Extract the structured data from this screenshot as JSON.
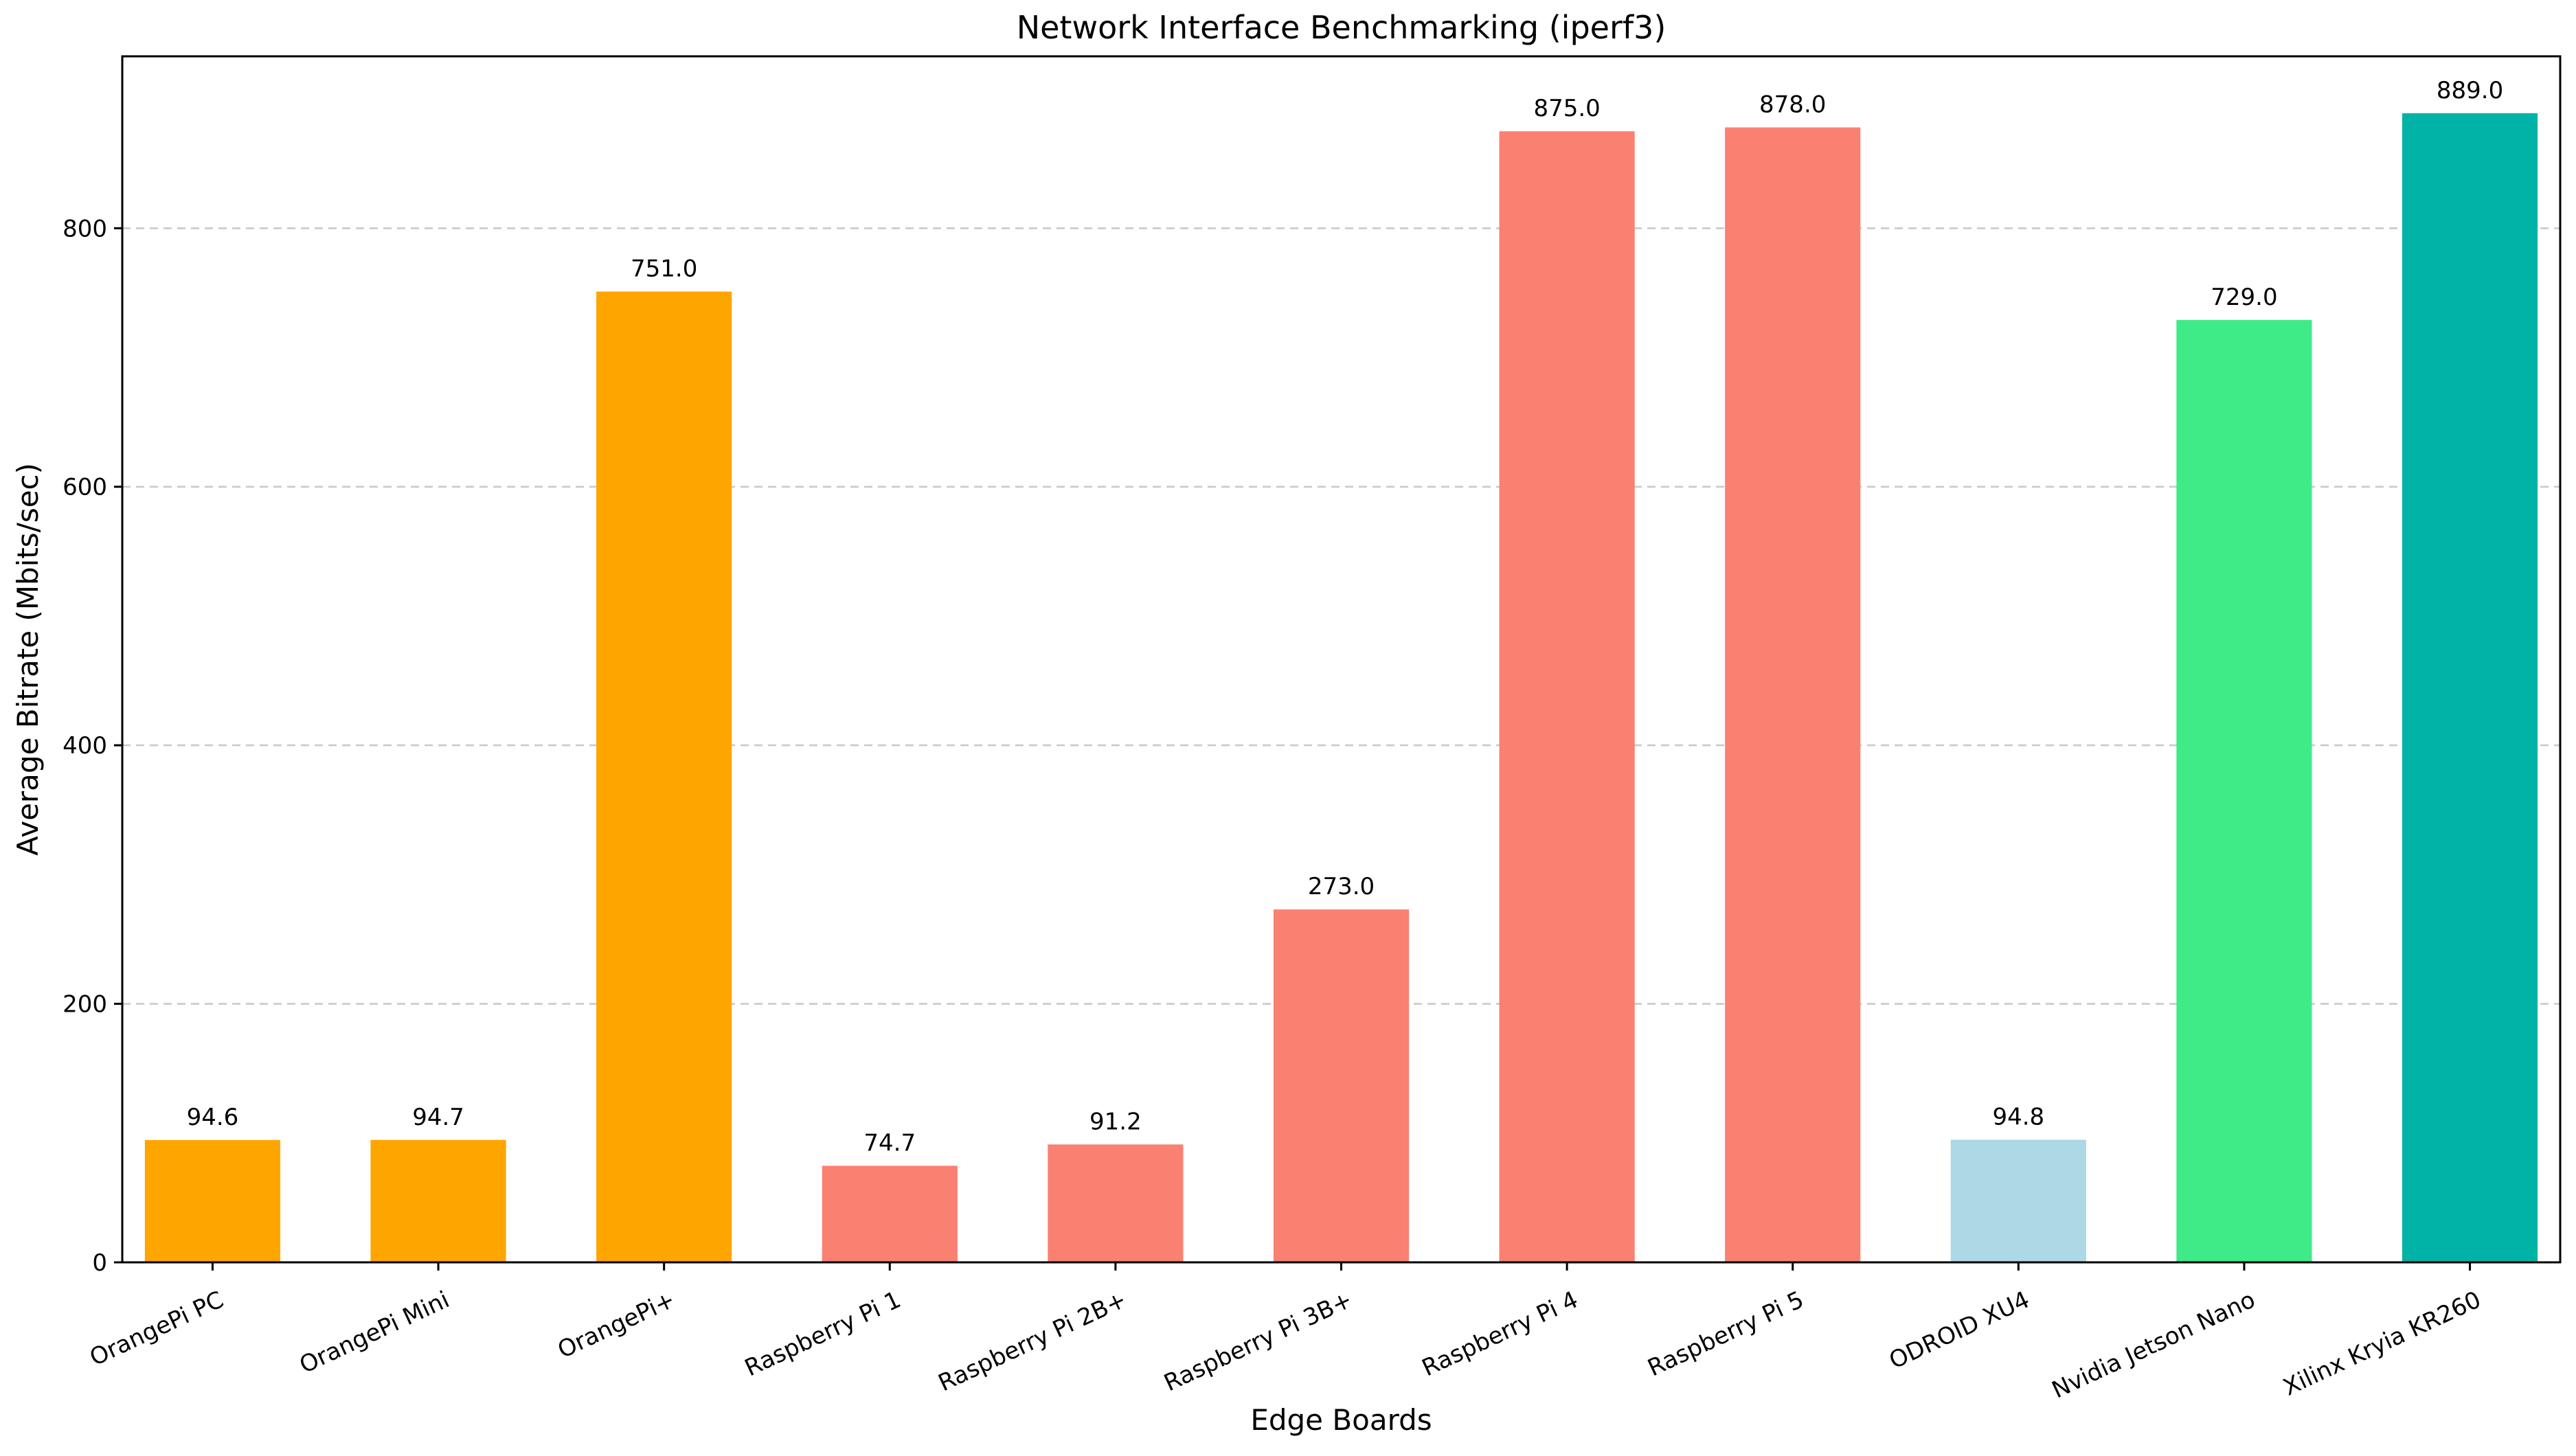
{
  "chart_data": {
    "type": "bar",
    "title": "Network Interface Benchmarking (iperf3)",
    "xlabel": "Edge Boards",
    "ylabel": "Average Bitrate (Mbits/sec)",
    "categories": [
      "OrangePi PC",
      "OrangePi Mini",
      "OrangePi+",
      "Raspberry Pi 1",
      "Raspberry Pi 2B+",
      "Raspberry Pi 3B+",
      "Raspberry Pi 4",
      "Raspberry Pi 5",
      "ODROID XU4",
      "Nvidia Jetson Nano",
      "Xilinx Kryia KR260"
    ],
    "values": [
      94.6,
      94.7,
      751.0,
      74.7,
      91.2,
      273.0,
      875.0,
      878.0,
      94.8,
      729.0,
      889.0
    ],
    "value_labels": [
      "94.6",
      "94.7",
      "751.0",
      "74.7",
      "91.2",
      "273.0",
      "875.0",
      "878.0",
      "94.8",
      "729.0",
      "889.0"
    ],
    "bar_colors": [
      "#FFA500",
      "#FFA500",
      "#FFA500",
      "#FA8072",
      "#FA8072",
      "#FA8072",
      "#FA8072",
      "#FA8072",
      "#ADD8E6",
      "#3EEB87",
      "#00B3A6"
    ],
    "ylim": [
      0,
      933
    ],
    "yticks": [
      0,
      200,
      400,
      600,
      800
    ],
    "ytick_labels": [
      "0",
      "200",
      "400",
      "600",
      "800"
    ],
    "grid": "y-dashed",
    "legend": "none"
  }
}
